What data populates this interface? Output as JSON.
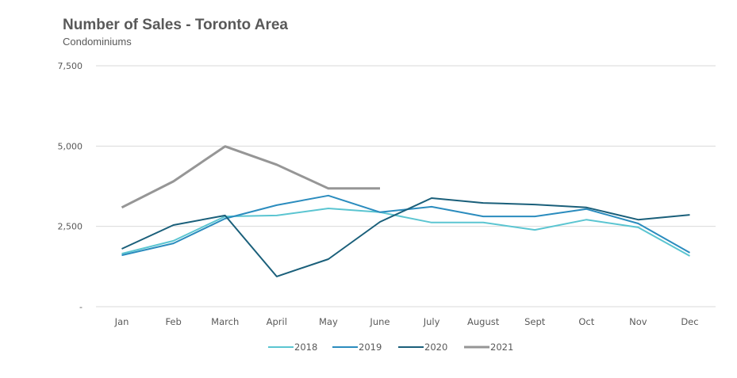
{
  "chart_data": {
    "type": "line",
    "title": "Number of Sales - Toronto Area",
    "subtitle": "Condominiums",
    "xlabel": "",
    "ylabel": "",
    "ylim": [
      0,
      7500
    ],
    "yticks": [
      {
        "value": 0,
        "label": "-"
      },
      {
        "value": 2500,
        "label": "2,500"
      },
      {
        "value": 5000,
        "label": "5,000"
      },
      {
        "value": 7500,
        "label": "7,500"
      }
    ],
    "grid": true,
    "legend_position": "bottom",
    "categories": [
      "Jan",
      "Feb",
      "March",
      "April",
      "May",
      "June",
      "July",
      "August",
      "Sept",
      "Oct",
      "Nov",
      "Dec"
    ],
    "series": [
      {
        "name": "2018",
        "color": "#5bc5d1",
        "values": [
          1650,
          2050,
          2810,
          2840,
          3060,
          2940,
          2620,
          2620,
          2390,
          2710,
          2470,
          1580
        ]
      },
      {
        "name": "2019",
        "color": "#2b8cbe",
        "values": [
          1600,
          1970,
          2740,
          3160,
          3460,
          2940,
          3110,
          2810,
          2810,
          3040,
          2590,
          1680
        ]
      },
      {
        "name": "2020",
        "color": "#1a5f7a",
        "values": [
          1800,
          2540,
          2840,
          940,
          1480,
          2640,
          3380,
          3230,
          3180,
          3090,
          2710,
          2860
        ]
      },
      {
        "name": "2021",
        "color": "#969696",
        "values": [
          3090,
          3900,
          4990,
          4420,
          3680,
          3680
        ]
      }
    ]
  }
}
